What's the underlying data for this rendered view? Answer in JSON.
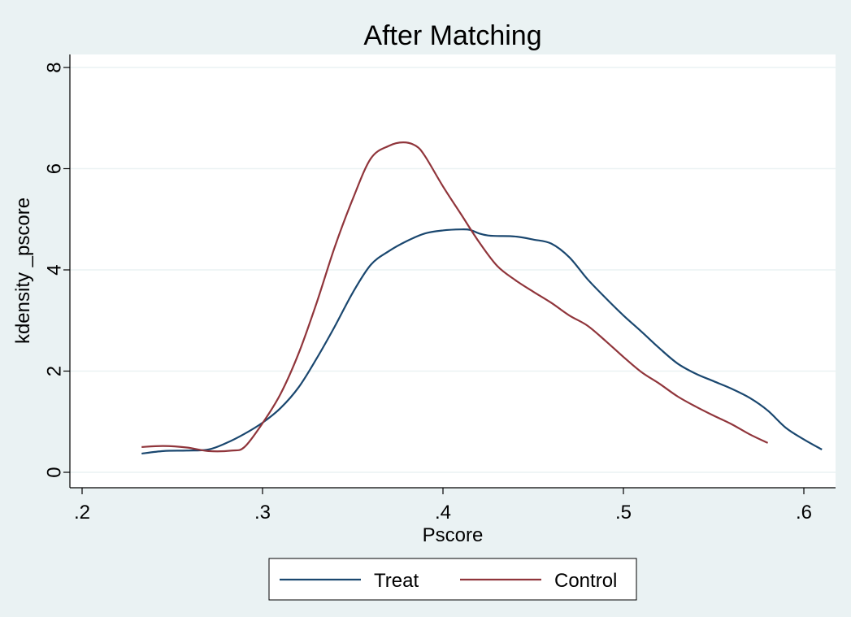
{
  "chart_data": {
    "type": "line",
    "title": "After Matching",
    "xlabel": "Pscore",
    "ylabel": "kdensity _pscore",
    "xlim": [
      0.2,
      0.61
    ],
    "ylim": [
      0,
      8
    ],
    "x_ticks": [
      0.2,
      0.3,
      0.4,
      0.5,
      0.6
    ],
    "x_tick_labels": [
      ".2",
      ".3",
      ".4",
      ".5",
      ".6"
    ],
    "y_ticks": [
      0,
      2,
      4,
      6,
      8
    ],
    "y_tick_labels": [
      "0",
      "2",
      "4",
      "6",
      "8"
    ],
    "grid": true,
    "legend_position": "bottom",
    "series": [
      {
        "name": "Treat",
        "color": "#1a476f",
        "x": [
          0.233,
          0.245,
          0.258,
          0.27,
          0.28,
          0.29,
          0.3,
          0.31,
          0.32,
          0.33,
          0.34,
          0.35,
          0.36,
          0.37,
          0.38,
          0.39,
          0.4,
          0.41,
          0.415,
          0.42,
          0.425,
          0.43,
          0.44,
          0.45,
          0.46,
          0.47,
          0.48,
          0.49,
          0.5,
          0.51,
          0.52,
          0.53,
          0.54,
          0.55,
          0.56,
          0.57,
          0.58,
          0.59,
          0.6,
          0.61
        ],
        "y": [
          0.37,
          0.42,
          0.43,
          0.45,
          0.58,
          0.76,
          0.98,
          1.27,
          1.68,
          2.25,
          2.88,
          3.55,
          4.1,
          4.37,
          4.57,
          4.72,
          4.78,
          4.8,
          4.79,
          4.72,
          4.68,
          4.67,
          4.66,
          4.6,
          4.52,
          4.25,
          3.82,
          3.45,
          3.1,
          2.78,
          2.45,
          2.15,
          1.95,
          1.8,
          1.65,
          1.47,
          1.22,
          0.88,
          0.65,
          0.45
        ]
      },
      {
        "name": "Control",
        "color": "#90353b",
        "x": [
          0.233,
          0.245,
          0.258,
          0.27,
          0.283,
          0.29,
          0.3,
          0.31,
          0.32,
          0.33,
          0.34,
          0.35,
          0.36,
          0.37,
          0.378,
          0.385,
          0.39,
          0.4,
          0.41,
          0.42,
          0.43,
          0.44,
          0.45,
          0.46,
          0.47,
          0.48,
          0.49,
          0.5,
          0.51,
          0.52,
          0.53,
          0.54,
          0.55,
          0.56,
          0.57,
          0.58
        ],
        "y": [
          0.5,
          0.52,
          0.49,
          0.42,
          0.43,
          0.5,
          0.97,
          1.55,
          2.35,
          3.35,
          4.45,
          5.4,
          6.2,
          6.45,
          6.52,
          6.45,
          6.25,
          5.65,
          5.1,
          4.55,
          4.08,
          3.8,
          3.57,
          3.35,
          3.1,
          2.9,
          2.6,
          2.28,
          1.98,
          1.75,
          1.5,
          1.3,
          1.12,
          0.95,
          0.75,
          0.58
        ]
      }
    ]
  }
}
